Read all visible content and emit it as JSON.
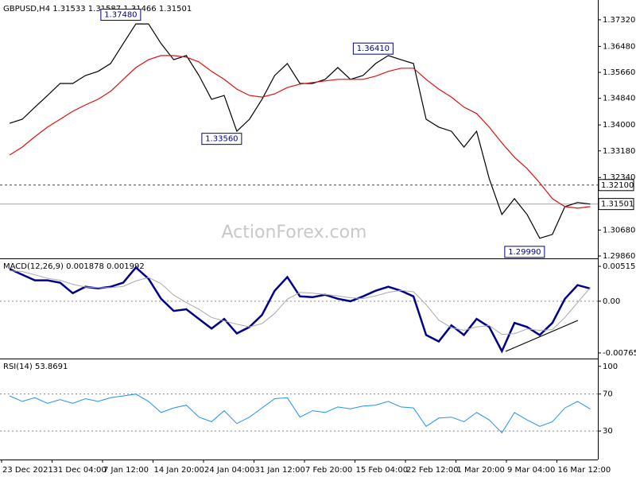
{
  "chart_data": [
    {
      "type": "line",
      "title": "GBPUSD,H4  1.31533 1.31587 1.31466 1.31501",
      "watermark": "ActionForex.com",
      "ylim": [
        1.2981,
        1.3787
      ],
      "yticks": [
        {
          "value": 1.3732,
          "label": "1.37320"
        },
        {
          "value": 1.3648,
          "label": "1.36480"
        },
        {
          "value": 1.3566,
          "label": "1.35660"
        },
        {
          "value": 1.3484,
          "label": "1.34840"
        },
        {
          "value": 1.34,
          "label": "1.34000"
        },
        {
          "value": 1.3318,
          "label": "1.33180"
        },
        {
          "value": 1.3234,
          "label": "1.32340"
        },
        {
          "value": 1.3068,
          "label": "1.30680"
        },
        {
          "value": 1.2986,
          "label": "1.29860"
        }
      ],
      "series": [
        {
          "name": "GBPUSD",
          "color": "#000000",
          "values": [
            1.3405,
            1.3418,
            1.3456,
            1.3493,
            1.3531,
            1.3531,
            1.3556,
            1.3569,
            1.3594,
            1.3657,
            1.3719,
            1.3719,
            1.3657,
            1.3606,
            1.3619,
            1.3556,
            1.3481,
            1.3493,
            1.338,
            1.3418,
            1.3481,
            1.3556,
            1.3594,
            1.3531,
            1.3531,
            1.3544,
            1.3581,
            1.3544,
            1.3556,
            1.3594,
            1.3619,
            1.3606,
            1.3594,
            1.3418,
            1.3393,
            1.338,
            1.333,
            1.338,
            1.323,
            1.3117,
            1.3167,
            1.3117,
            1.3042,
            1.3054,
            1.3142,
            1.3155,
            1.31501
          ]
        },
        {
          "name": "MA",
          "color": "#e01010",
          "values": [
            1.3305,
            1.333,
            1.3363,
            1.3393,
            1.3418,
            1.3443,
            1.3463,
            1.3481,
            1.3506,
            1.3544,
            1.3581,
            1.3606,
            1.3619,
            1.3619,
            1.3614,
            1.3599,
            1.3569,
            1.3544,
            1.3513,
            1.3493,
            1.3488,
            1.3498,
            1.3518,
            1.3529,
            1.3534,
            1.3539,
            1.3544,
            1.3544,
            1.3544,
            1.3554,
            1.3569,
            1.3579,
            1.3579,
            1.3544,
            1.3513,
            1.3488,
            1.3456,
            1.3436,
            1.3393,
            1.3343,
            1.3298,
            1.3262,
            1.3217,
            1.3167,
            1.3142,
            1.3137,
            1.3142
          ]
        }
      ],
      "annotations": [
        {
          "value": 1.3748,
          "label": "1.37480",
          "index": 10
        },
        {
          "value": 1.3356,
          "label": "1.33560",
          "index": 18
        },
        {
          "value": 1.3641,
          "label": "1.36410",
          "index": 30
        },
        {
          "value": 1.2999,
          "label": "1.29990",
          "index": 42
        }
      ],
      "price_lines": [
        {
          "value": 1.321,
          "label": "1.32100",
          "style": "dashed"
        },
        {
          "value": 1.31501,
          "label": "1.31501",
          "style": "solid"
        }
      ]
    },
    {
      "type": "line",
      "title": "MACD(12,26,9) 0.001878 0.001992",
      "ylim": [
        -0.00836,
        0.0061
      ],
      "yticks": [
        0.005152,
        {
          "value": 0,
          "label": "0.00"
        },
        -0.00765
      ],
      "levels": [
        0
      ],
      "series": [
        {
          "name": "MACD",
          "color": "#00008b",
          "width": 2.5,
          "values": [
            0.00476,
            0.00393,
            0.00309,
            0.00309,
            0.00274,
            0.00119,
            0.00214,
            0.0019,
            0.00214,
            0.00274,
            0.005,
            0.00333,
            0.00036,
            -0.00143,
            -0.00119,
            -0.00262,
            -0.00405,
            -0.00262,
            -0.00476,
            -0.00381,
            -0.00202,
            0.00155,
            0.00357,
            0.00071,
            0.0006,
            0.00095,
            0.00036,
            0,
            0.00071,
            0.00155,
            0.00214,
            0.00155,
            0.00071,
            -0.005,
            -0.00595,
            -0.00357,
            -0.005,
            -0.00262,
            -0.00381,
            -0.00738,
            -0.00321,
            -0.00381,
            -0.005,
            -0.00321,
            0.00036,
            0.00238,
            0.00188
          ]
        },
        {
          "name": "Signal",
          "color": "#a9a9a9",
          "width": 1,
          "values": [
            0.0045,
            0.0044,
            0.0039,
            0.0034,
            0.0031,
            0.0025,
            0.0021,
            0.002,
            0.002,
            0.0022,
            0.003,
            0.0035,
            0.0026,
            0.0009,
            -0.0002,
            -0.0012,
            -0.0024,
            -0.0029,
            -0.0034,
            -0.0038,
            -0.0033,
            -0.0018,
            0.0003,
            0.0013,
            0.0012,
            0.001,
            0.0008,
            0.0005,
            0.0004,
            0.0008,
            0.0013,
            0.0016,
            0.0014,
            -0.0005,
            -0.0028,
            -0.0039,
            -0.0043,
            -0.0038,
            -0.0036,
            -0.0049,
            -0.0048,
            -0.0041,
            -0.0043,
            -0.0042,
            -0.0024,
            -0.0002,
            0.00199
          ]
        }
      ]
    },
    {
      "type": "line",
      "title": "RSI(14) 53.8691",
      "ylim": [
        0,
        106.7
      ],
      "yticks": [
        100,
        70,
        30
      ],
      "levels": [
        70,
        30
      ],
      "categories": [
        null,
        "23 Dec 2021",
        null,
        null,
        null,
        "31 Dec 04:00",
        null,
        null,
        null,
        "7 Jan 12:00",
        null,
        null,
        null,
        "14 Jan 20:00",
        null,
        null,
        null,
        "24 Jan 04:00",
        null,
        null,
        null,
        "31 Jan 12:00",
        null,
        null,
        null,
        "7 Feb 20:00",
        null,
        null,
        null,
        "15 Feb 04:00",
        null,
        null,
        null,
        "22 Feb 12:00",
        null,
        null,
        null,
        "1 Mar 20:00",
        null,
        null,
        null,
        "9 Mar 04:00",
        null,
        null,
        null,
        "16 Mar 12:00",
        null
      ],
      "series": [
        {
          "name": "RSI",
          "color": "#1e90ff",
          "width": 1,
          "values": [
            68,
            62,
            66,
            60,
            64,
            60,
            65,
            62,
            66,
            68,
            70,
            62,
            50,
            55,
            58,
            45,
            40,
            52,
            38,
            45,
            55,
            65,
            66,
            45,
            52,
            50,
            56,
            54,
            57,
            58,
            62,
            56,
            55,
            35,
            44,
            45,
            40,
            50,
            42,
            28,
            50,
            42,
            35,
            40,
            55,
            62,
            53.8691
          ]
        }
      ]
    }
  ]
}
